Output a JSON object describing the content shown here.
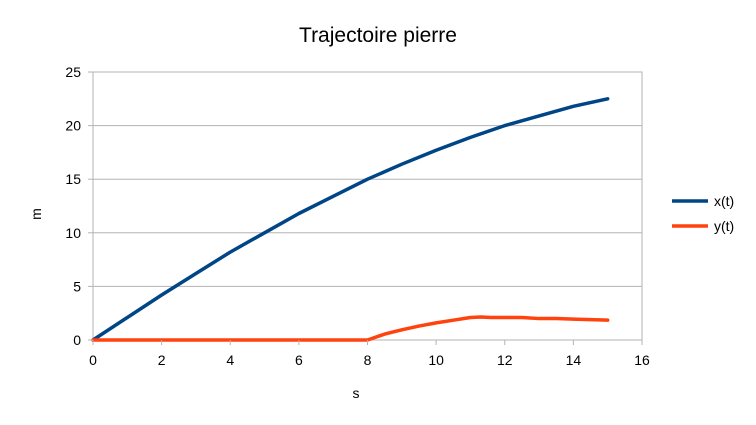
{
  "chart_data": {
    "type": "line",
    "title": "Trajectoire pierre",
    "xlabel": "s",
    "ylabel": "m",
    "xlim": [
      0,
      16
    ],
    "ylim": [
      0,
      25
    ],
    "xticks": [
      0,
      2,
      4,
      6,
      8,
      10,
      12,
      14,
      16
    ],
    "yticks": [
      0,
      5,
      10,
      15,
      20,
      25
    ],
    "grid": true,
    "legend_position": "right",
    "series": [
      {
        "name": "x(t)",
        "color": "#004586",
        "x": [
          0,
          1,
          2,
          3,
          4,
          5,
          6,
          7,
          8,
          9,
          10,
          11,
          12,
          13,
          14,
          15
        ],
        "y": [
          0,
          2.1,
          4.2,
          6.2,
          8.2,
          10.0,
          11.8,
          13.4,
          15.0,
          16.4,
          17.7,
          18.9,
          20.0,
          20.9,
          21.8,
          22.5
        ]
      },
      {
        "name": "y(t)",
        "color": "#ff420e",
        "x": [
          0,
          1,
          2,
          3,
          4,
          5,
          6,
          7,
          8,
          8.5,
          9,
          9.5,
          10,
          10.5,
          11,
          11.3,
          11.6,
          12,
          12.5,
          13,
          13.5,
          14,
          14.5,
          15
        ],
        "y": [
          0,
          0,
          0,
          0,
          0,
          0,
          0,
          0,
          0,
          0.55,
          0.95,
          1.3,
          1.6,
          1.85,
          2.1,
          2.15,
          2.1,
          2.1,
          2.1,
          2.0,
          2.0,
          1.95,
          1.9,
          1.85
        ]
      }
    ]
  }
}
